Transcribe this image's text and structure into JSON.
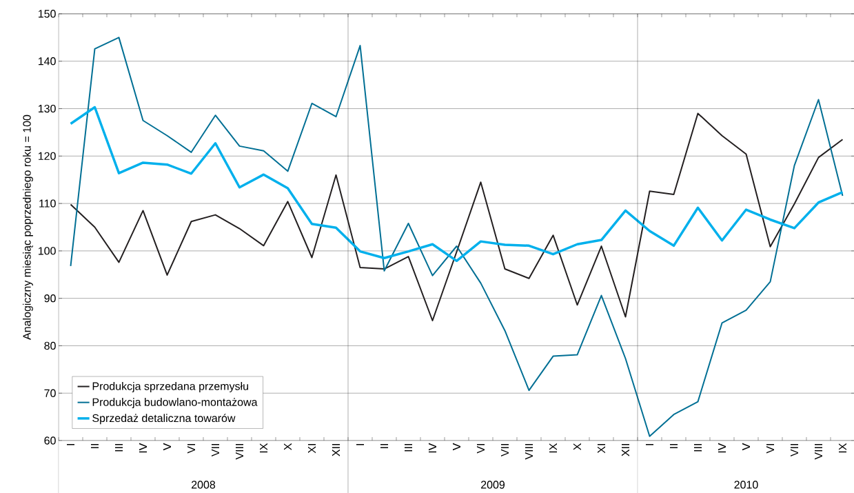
{
  "chart_data": {
    "type": "line",
    "ylabel": "Analogiczny miesiąc poprzedniego roku = 100",
    "categories": [
      "I",
      "II",
      "III",
      "IV",
      "V",
      "VI",
      "VII",
      "VIII",
      "IX",
      "X",
      "XI",
      "XII",
      "I",
      "II",
      "III",
      "IV",
      "V",
      "VI",
      "VII",
      "VIII",
      "IX",
      "X",
      "XI",
      "XII",
      "I",
      "II",
      "III",
      "IV",
      "V",
      "VI",
      "VII",
      "VIII",
      "IX"
    ],
    "series": [
      {
        "name": "Produkcja sprzedana przemysłu",
        "color": "#231f20",
        "values": [
          109.8,
          105,
          97.6,
          108.5,
          94.9,
          106.2,
          107.6,
          104.7,
          101.1,
          110.4,
          98.6,
          116,
          96.5,
          96.2,
          98.8,
          85.3,
          99.8,
          114.5,
          96.2,
          94.2,
          103.3,
          88.6,
          101,
          86.1,
          112.6,
          111.9,
          129,
          124.3,
          120.4,
          100.9,
          109.9,
          119.7,
          123.5
        ]
      },
      {
        "name": "Produkcja budowlano-montażowa",
        "color": "#006f94",
        "values": [
          96.8,
          142.6,
          145,
          127.5,
          124.3,
          120.8,
          128.6,
          122.1,
          121.1,
          116.8,
          131.1,
          128.3,
          143.3,
          95.8,
          105.8,
          94.8,
          101,
          93.2,
          83.2,
          70.6,
          77.8,
          78.1,
          90.6,
          77.3,
          60.9,
          65.5,
          68.2,
          84.8,
          87.5,
          93.5,
          118,
          131.9,
          111.6
        ]
      },
      {
        "name": "Sprzedaż detaliczna towarów",
        "color": "#00b0ec",
        "values": [
          126.8,
          130.3,
          116.4,
          118.6,
          118.2,
          116.3,
          122.7,
          113.4,
          116.1,
          113.2,
          105.7,
          104.9,
          99.9,
          98.5,
          99.9,
          101.4,
          97.9,
          102,
          101.3,
          101.1,
          99.3,
          101.4,
          102.3,
          108.5,
          104.2,
          101.1,
          109.1,
          102.2,
          108.7,
          106.6,
          104.8,
          110.2,
          112.4
        ]
      }
    ],
    "annotations": [
      "2008",
      "2009",
      "2010"
    ],
    "ylim": [
      60,
      150
    ],
    "yticks": [
      60,
      70,
      80,
      90,
      100,
      110,
      120,
      130,
      140,
      150
    ],
    "grid": "y",
    "legend": "bottom left",
    "marker": "none",
    "line_style": "solid"
  }
}
